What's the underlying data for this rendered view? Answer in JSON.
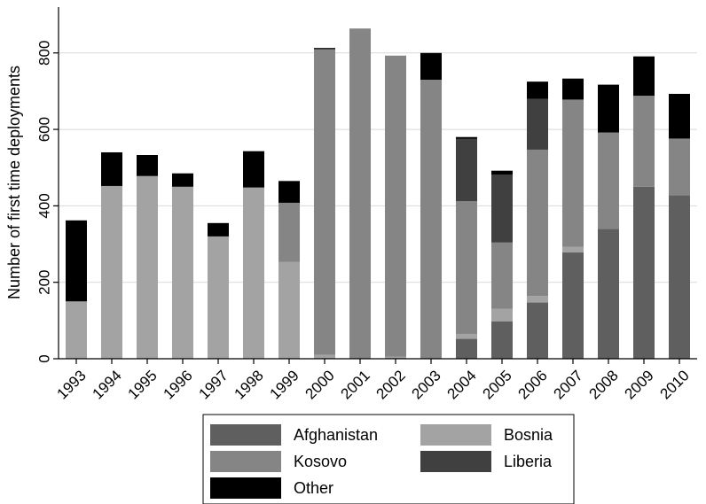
{
  "chart_data": {
    "type": "bar",
    "stacked": true,
    "ylabel": "Number of first time deployments",
    "xlabel": "",
    "ylim": [
      0,
      920
    ],
    "yticks": [
      0,
      200,
      400,
      600,
      800
    ],
    "grid": true,
    "legend_position": "bottom",
    "categories": [
      "1993",
      "1994",
      "1995",
      "1996",
      "1997",
      "1998",
      "1999",
      "2000",
      "2001",
      "2002",
      "2003",
      "2004",
      "2005",
      "2006",
      "2007",
      "2008",
      "2009",
      "2010"
    ],
    "series": [
      {
        "name": "Afghanistan",
        "color": "#5f5f5f",
        "values": [
          0,
          0,
          0,
          0,
          0,
          0,
          0,
          0,
          0,
          0,
          0,
          52,
          98,
          147,
          278,
          340,
          450,
          428
        ]
      },
      {
        "name": "Bosnia",
        "color": "#a3a3a3",
        "values": [
          150,
          452,
          478,
          450,
          320,
          448,
          253,
          10,
          0,
          5,
          0,
          13,
          33,
          17,
          15,
          0,
          0,
          0
        ]
      },
      {
        "name": "Kosovo",
        "color": "#858585",
        "values": [
          0,
          0,
          0,
          0,
          0,
          0,
          155,
          800,
          864,
          788,
          730,
          347,
          173,
          383,
          385,
          252,
          238,
          148
        ]
      },
      {
        "name": "Liberia",
        "color": "#404040",
        "values": [
          0,
          0,
          0,
          0,
          0,
          0,
          0,
          0,
          0,
          0,
          0,
          163,
          178,
          133,
          0,
          0,
          0,
          0
        ]
      },
      {
        "name": "Other",
        "color": "#000000",
        "values": [
          212,
          88,
          55,
          35,
          35,
          95,
          57,
          3,
          0,
          0,
          70,
          5,
          10,
          45,
          55,
          125,
          103,
          117
        ]
      }
    ]
  }
}
